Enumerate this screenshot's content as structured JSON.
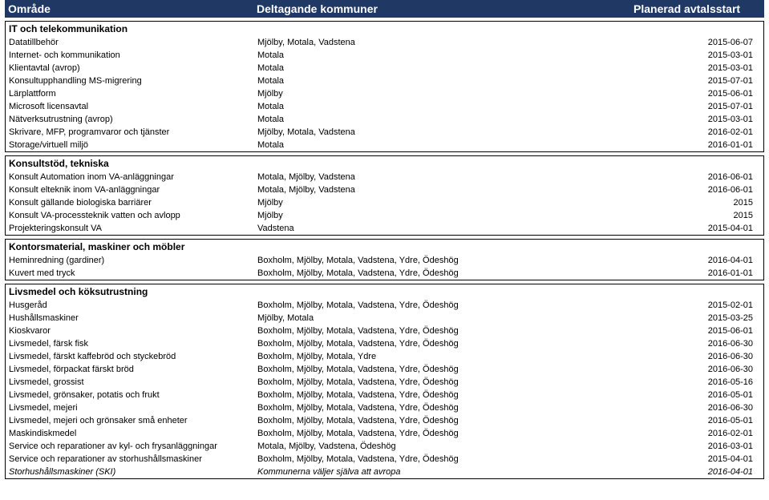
{
  "header": {
    "col_a": "Område",
    "col_b": "Deltagande kommuner",
    "col_c": "Planerad avtalsstart"
  },
  "sections": [
    {
      "title": "IT och telekommunikation",
      "rows": [
        {
          "a": "Datatillbehör",
          "b": "Mjölby, Motala, Vadstena",
          "c": "2015-06-07"
        },
        {
          "a": "Internet- och kommunikation",
          "b": "Motala",
          "c": "2015-03-01"
        },
        {
          "a": "Klientavtal (avrop)",
          "b": "Motala",
          "c": "2015-03-01"
        },
        {
          "a": "Konsultupphandling MS-migrering",
          "b": "Motala",
          "c": "2015-07-01"
        },
        {
          "a": "Lärplattform",
          "b": "Mjölby",
          "c": "2015-06-01"
        },
        {
          "a": "Microsoft licensavtal",
          "b": "Motala",
          "c": "2015-07-01"
        },
        {
          "a": "Nätverksutrustning (avrop)",
          "b": "Motala",
          "c": "2015-03-01"
        },
        {
          "a": "Skrivare, MFP, programvaror och tjänster",
          "b": "Mjölby, Motala, Vadstena",
          "c": "2016-02-01"
        },
        {
          "a": "Storage/virtuell miljö",
          "b": "Motala",
          "c": "2016-01-01"
        }
      ]
    },
    {
      "title": "Konsultstöd, tekniska",
      "rows": [
        {
          "a": "Konsult Automation inom VA-anläggningar",
          "b": "Motala, Mjölby, Vadstena",
          "c": "2016-06-01"
        },
        {
          "a": "Konsult elteknik inom VA-anläggningar",
          "b": "Motala, Mjölby, Vadstena",
          "c": "2016-06-01"
        },
        {
          "a": "Konsult gällande biologiska barriärer",
          "b": "Mjölby",
          "c": "2015"
        },
        {
          "a": "Konsult VA-processteknik vatten och avlopp",
          "b": "Mjölby",
          "c": "2015"
        },
        {
          "a": "Projekteringskonsult VA",
          "b": "Vadstena",
          "c": "2015-04-01"
        }
      ]
    },
    {
      "title": "Kontorsmaterial, maskiner och möbler",
      "rows": [
        {
          "a": "Heminredning (gardiner)",
          "b": "Boxholm, Mjölby, Motala, Vadstena, Ydre, Ödeshög",
          "c": "2016-04-01"
        },
        {
          "a": "Kuvert med tryck",
          "b": "Boxholm, Mjölby, Motala, Vadstena, Ydre, Ödeshög",
          "c": "2016-01-01"
        }
      ]
    },
    {
      "title": "Livsmedel och köksutrustning",
      "rows": [
        {
          "a": "Husgeråd",
          "b": "Boxholm, Mjölby, Motala, Vadstena, Ydre, Ödeshög",
          "c": "2015-02-01"
        },
        {
          "a": "Hushållsmaskiner",
          "b": "Mjölby, Motala",
          "c": "2015-03-25"
        },
        {
          "a": "Kioskvaror",
          "b": "Boxholm, Mjölby, Motala, Vadstena, Ydre, Ödeshög",
          "c": "2015-06-01"
        },
        {
          "a": "Livsmedel, färsk fisk",
          "b": "Boxholm, Mjölby, Motala, Vadstena, Ydre, Ödeshög",
          "c": "2016-06-30"
        },
        {
          "a": "Livsmedel, färskt kaffebröd och styckebröd",
          "b": "Boxholm, Mjölby, Motala, Ydre",
          "c": "2016-06-30"
        },
        {
          "a": "Livsmedel, förpackat färskt bröd",
          "b": "Boxholm, Mjölby, Motala, Vadstena, Ydre, Ödeshög",
          "c": "2016-06-30"
        },
        {
          "a": "Livsmedel, grossist",
          "b": "Boxholm, Mjölby, Motala, Vadstena, Ydre, Ödeshög",
          "c": "2016-05-16"
        },
        {
          "a": "Livsmedel, grönsaker, potatis och frukt",
          "b": "Boxholm, Mjölby, Motala, Vadstena, Ydre, Ödeshög",
          "c": "2016-05-01"
        },
        {
          "a": "Livsmedel, mejeri",
          "b": "Boxholm, Mjölby, Motala, Vadstena, Ydre, Ödeshög",
          "c": "2016-06-30"
        },
        {
          "a": "Livsmedel, mejeri och grönsaker små enheter",
          "b": "Boxholm, Mjölby, Motala, Vadstena, Ydre, Ödeshög",
          "c": "2016-05-01"
        },
        {
          "a": "Maskindiskmedel",
          "b": "Boxholm, Mjölby, Motala, Vadstena, Ydre, Ödeshög",
          "c": "2016-02-01"
        },
        {
          "a": "Service och reparationer av kyl- och frysanläggningar",
          "b": "Motala, Mjölby, Vadstena, Ödeshög",
          "c": "2016-03-01"
        },
        {
          "a": "Service och reparationer av storhushållsmaskiner",
          "b": "Boxholm, Mjölby, Motala, Vadstena, Ydre, Ödeshög",
          "c": "2015-04-01"
        },
        {
          "a": "Storhushållsmaskiner (SKI)",
          "b": "Kommunerna väljer själva att avropa",
          "c": "2016-04-01"
        }
      ]
    }
  ],
  "italic_rows": [
    "Storhushållsmaskiner (SKI)"
  ]
}
